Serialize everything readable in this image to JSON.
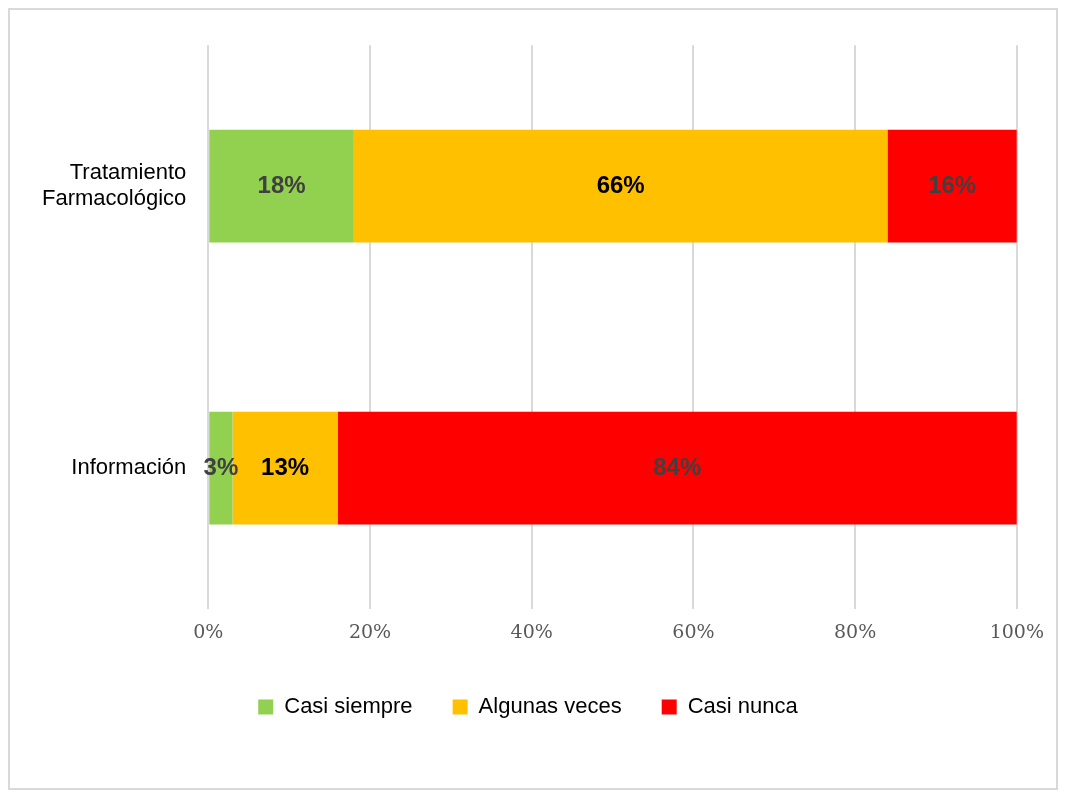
{
  "chart_data": {
    "type": "bar",
    "orientation": "horizontal",
    "stacked": true,
    "categories": [
      "Tratamiento Farmacológico",
      "Información"
    ],
    "series": [
      {
        "name": "Casi siempre",
        "color": "#92d050",
        "values": [
          18,
          3
        ],
        "value_labels": [
          "18%",
          "3%"
        ]
      },
      {
        "name": "Algunas veces",
        "color": "#ffc000",
        "values": [
          66,
          13
        ],
        "value_labels": [
          "66%",
          "13%"
        ]
      },
      {
        "name": "Casi nunca",
        "color": "#ff0000",
        "values": [
          16,
          84
        ],
        "value_labels": [
          "16%",
          "84%"
        ]
      }
    ],
    "xlim": [
      0,
      100
    ],
    "xticks": [
      {
        "value": 0,
        "label": "0%"
      },
      {
        "value": 20,
        "label": "20%"
      },
      {
        "value": 40,
        "label": "40%"
      },
      {
        "value": 60,
        "label": "60%"
      },
      {
        "value": 80,
        "label": "80%"
      },
      {
        "value": 100,
        "label": "100%"
      }
    ],
    "grid": "x",
    "legend": "bottom"
  }
}
